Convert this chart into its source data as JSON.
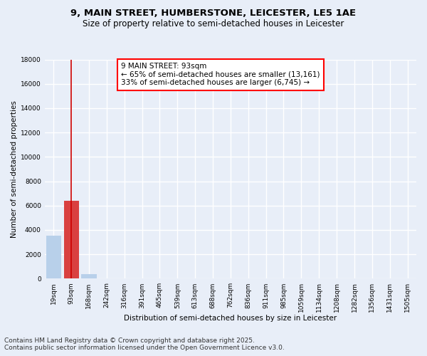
{
  "title1": "9, MAIN STREET, HUMBERSTONE, LEICESTER, LE5 1AE",
  "title2": "Size of property relative to semi-detached houses in Leicester",
  "xlabel": "Distribution of semi-detached houses by size in Leicester",
  "ylabel": "Number of semi-detached properties",
  "categories": [
    "19sqm",
    "93sqm",
    "168sqm",
    "242sqm",
    "316sqm",
    "391sqm",
    "465sqm",
    "539sqm",
    "613sqm",
    "688sqm",
    "762sqm",
    "836sqm",
    "911sqm",
    "985sqm",
    "1059sqm",
    "1134sqm",
    "1208sqm",
    "1282sqm",
    "1356sqm",
    "1431sqm",
    "1505sqm"
  ],
  "values": [
    3500,
    6400,
    400,
    0,
    0,
    0,
    0,
    0,
    0,
    0,
    0,
    0,
    0,
    0,
    0,
    0,
    0,
    0,
    0,
    0,
    0
  ],
  "highlight_index": 1,
  "bar_color": "#b8d0ea",
  "highlight_bar_color": "#d94040",
  "red_line_color": "#cc0000",
  "ylim": [
    0,
    18000
  ],
  "yticks": [
    0,
    2000,
    4000,
    6000,
    8000,
    10000,
    12000,
    14000,
    16000,
    18000
  ],
  "annotation_title": "9 MAIN STREET: 93sqm",
  "annotation_line1": "← 65% of semi-detached houses are smaller (13,161)",
  "annotation_line2": "33% of semi-detached houses are larger (6,745) →",
  "footnote1": "Contains HM Land Registry data © Crown copyright and database right 2025.",
  "footnote2": "Contains public sector information licensed under the Open Government Licence v3.0.",
  "bg_color": "#e8eef8",
  "plot_bg_color": "#e8eef8",
  "grid_color": "#ffffff",
  "title_fontsize": 9.5,
  "subtitle_fontsize": 8.5,
  "axis_label_fontsize": 7.5,
  "tick_fontsize": 6.5,
  "annotation_fontsize": 7.5,
  "footnote_fontsize": 6.5
}
